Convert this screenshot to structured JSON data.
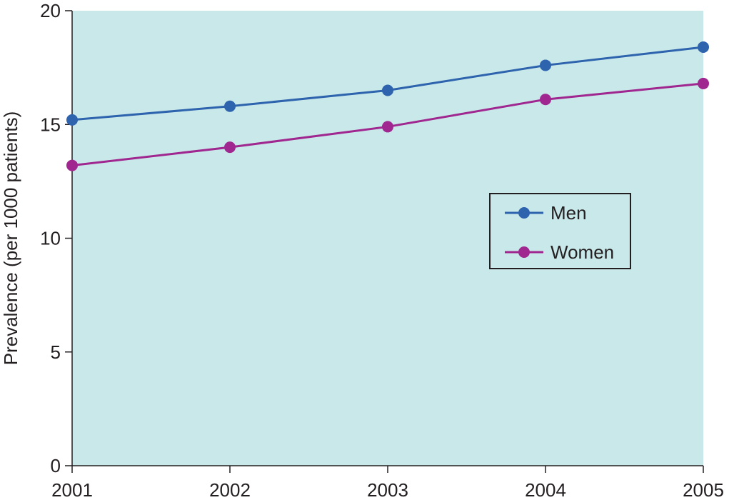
{
  "chart_data": {
    "type": "line",
    "title": "",
    "xlabel": "",
    "ylabel": "Prevalence (per 1000 patients)",
    "categories": [
      "2001",
      "2002",
      "2003",
      "2004",
      "2005"
    ],
    "x": [
      2001,
      2002,
      2003,
      2004,
      2005
    ],
    "ylim": [
      0,
      20
    ],
    "yticks": [
      0,
      5,
      10,
      15,
      20
    ],
    "grid": false,
    "legend_position": "center-right",
    "background_color": "#c8e8ea",
    "series": [
      {
        "name": "Men",
        "color": "#2e63ad",
        "marker": "circle",
        "values": [
          15.2,
          15.8,
          16.5,
          17.6,
          18.4
        ]
      },
      {
        "name": "Women",
        "color": "#a0278f",
        "marker": "circle",
        "values": [
          13.2,
          14.0,
          14.9,
          16.1,
          16.8
        ]
      }
    ]
  }
}
